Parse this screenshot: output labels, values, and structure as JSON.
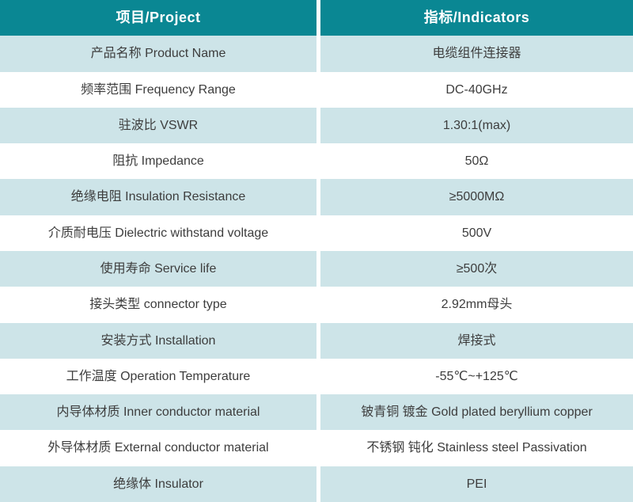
{
  "colors": {
    "header_background": "#0a8793",
    "header_text": "#ffffff",
    "alt_row_background": "#cde4e8",
    "body_text": "#3d3d3d"
  },
  "table": {
    "header": {
      "project": "项目/Project",
      "indicators": "指标/Indicators"
    },
    "rows": [
      {
        "project": "产品名称 Product Name",
        "indicator": "电缆组件连接器"
      },
      {
        "project": "频率范围 Frequency Range",
        "indicator": "DC-40GHz"
      },
      {
        "project": "驻波比 VSWR",
        "indicator": "1.30:1(max)"
      },
      {
        "project": "阻抗 Impedance",
        "indicator": "50Ω"
      },
      {
        "project": "绝缘电阻 Insulation Resistance",
        "indicator": "≥5000MΩ"
      },
      {
        "project": "介质耐电压 Dielectric withstand voltage",
        "indicator": "500V"
      },
      {
        "project": "使用寿命 Service life",
        "indicator": "≥500次"
      },
      {
        "project": "接头类型  connector type",
        "indicator": "2.92mm母头"
      },
      {
        "project": "安装方式 Installation",
        "indicator": "焊接式"
      },
      {
        "project": "工作温度 Operation Temperature",
        "indicator": "-55℃~+125℃"
      },
      {
        "project": "内导体材质 Inner conductor material",
        "indicator": "铍青铜 镀金 Gold plated beryllium copper"
      },
      {
        "project": "外导体材质 External conductor material",
        "indicator": "不锈钢 钝化 Stainless steel Passivation"
      },
      {
        "project": "绝缘体 Insulator",
        "indicator": "PEI"
      }
    ]
  },
  "chart_data": {
    "type": "table",
    "title": "",
    "columns": [
      "项目/Project",
      "指标/Indicators"
    ],
    "rows": [
      [
        "产品名称 Product Name",
        "电缆组件连接器"
      ],
      [
        "频率范围 Frequency Range",
        "DC-40GHz"
      ],
      [
        "驻波比 VSWR",
        "1.30:1(max)"
      ],
      [
        "阻抗 Impedance",
        "50Ω"
      ],
      [
        "绝缘电阻 Insulation Resistance",
        "≥5000MΩ"
      ],
      [
        "介质耐电压 Dielectric withstand voltage",
        "500V"
      ],
      [
        "使用寿命 Service life",
        "≥500次"
      ],
      [
        "接头类型  connector type",
        "2.92mm母头"
      ],
      [
        "安装方式 Installation",
        "焊接式"
      ],
      [
        "工作温度 Operation Temperature",
        "-55℃~+125℃"
      ],
      [
        "内导体材质 Inner conductor material",
        "铍青铜 镀金 Gold plated beryllium copper"
      ],
      [
        "外导体材质 External conductor material",
        "不锈钢 钝化 Stainless steel Passivation"
      ],
      [
        "绝缘体 Insulator",
        "PEI"
      ]
    ]
  }
}
